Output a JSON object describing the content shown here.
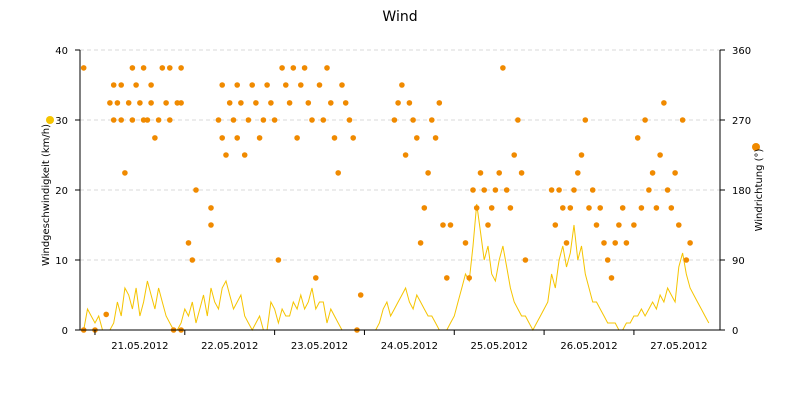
{
  "chart_data": {
    "type": "line",
    "title": "Wind",
    "x": {
      "tick_labels": [
        "21.05.2012",
        "22.05.2012",
        "23.05.2012",
        "24.05.2012",
        "25.05.2012",
        "26.05.2012",
        "27.05.2012"
      ],
      "range": [
        "20.05.2012 20:00",
        "27.05.2012 23:00"
      ]
    },
    "y_left": {
      "label": "Windgeschwindigkeit (km/h)",
      "range": [
        0,
        40
      ],
      "ticks": [
        0,
        10,
        20,
        30,
        40
      ]
    },
    "y_right": {
      "label": "Windrichtung (°)",
      "range": [
        0,
        360
      ],
      "ticks": [
        0,
        90,
        180,
        270,
        360
      ]
    },
    "grid": {
      "horizontal": "dashed"
    },
    "legend": {
      "speed_marker_color": "#F5C400",
      "direction_marker_color": "#F08A00"
    },
    "colors": {
      "speed": "#F5C400",
      "direction": "#F08A00"
    },
    "series": [
      {
        "name": "Windgeschwindigkeit (km/h)",
        "axis": "left",
        "kind": "line",
        "x_start": "20.05.2012 21:00",
        "step_hours": 1,
        "values": [
          0,
          3,
          2,
          1,
          2,
          0,
          0,
          0,
          1,
          4,
          2,
          6,
          5,
          3,
          6,
          2,
          4,
          7,
          5,
          3,
          6,
          4,
          2,
          1,
          0,
          0,
          1,
          3,
          2,
          4,
          1,
          3,
          5,
          2,
          6,
          4,
          3,
          6,
          7,
          5,
          3,
          4,
          5,
          2,
          1,
          0,
          1,
          2,
          0,
          0,
          4,
          3,
          1,
          3,
          2,
          2,
          4,
          3,
          5,
          3,
          4,
          6,
          3,
          4,
          4,
          1,
          3,
          2,
          1,
          0,
          0,
          0,
          0,
          0,
          0,
          0,
          0,
          0,
          0,
          1,
          3,
          4,
          2,
          3,
          4,
          5,
          6,
          4,
          3,
          5,
          4,
          3,
          2,
          2,
          1,
          0,
          0,
          0,
          1,
          2,
          4,
          6,
          8,
          7,
          12,
          18,
          14,
          10,
          12,
          8,
          7,
          10,
          12,
          9,
          6,
          4,
          3,
          2,
          2,
          1,
          0,
          1,
          2,
          3,
          4,
          8,
          6,
          10,
          12,
          9,
          11,
          15,
          10,
          12,
          8,
          6,
          4,
          4,
          3,
          2,
          1,
          1,
          1,
          0,
          0,
          1,
          1,
          2,
          2,
          3,
          2,
          3,
          4,
          3,
          5,
          4,
          6,
          5,
          4,
          9,
          11,
          8,
          6,
          5,
          4,
          3,
          2,
          1
        ]
      },
      {
        "name": "Windrichtung (°)",
        "axis": "right",
        "kind": "scatter",
        "points": [
          [
            "20.05.2012 21:00",
            337
          ],
          [
            "20.05.2012 21:00",
            0
          ],
          [
            "21.05.2012 00:00",
            0
          ],
          [
            "21.05.2012 03:00",
            20
          ],
          [
            "21.05.2012 04:00",
            292
          ],
          [
            "21.05.2012 05:00",
            315
          ],
          [
            "21.05.2012 05:00",
            270
          ],
          [
            "21.05.2012 06:00",
            292
          ],
          [
            "21.05.2012 07:00",
            315
          ],
          [
            "21.05.2012 07:00",
            270
          ],
          [
            "21.05.2012 08:00",
            202
          ],
          [
            "21.05.2012 09:00",
            292
          ],
          [
            "21.05.2012 10:00",
            337
          ],
          [
            "21.05.2012 10:00",
            270
          ],
          [
            "21.05.2012 11:00",
            315
          ],
          [
            "21.05.2012 12:00",
            292
          ],
          [
            "21.05.2012 13:00",
            337
          ],
          [
            "21.05.2012 13:00",
            270
          ],
          [
            "21.05.2012 14:00",
            270
          ],
          [
            "21.05.2012 15:00",
            315
          ],
          [
            "21.05.2012 15:00",
            292
          ],
          [
            "21.05.2012 16:00",
            247
          ],
          [
            "21.05.2012 17:00",
            270
          ],
          [
            "21.05.2012 18:00",
            337
          ],
          [
            "21.05.2012 19:00",
            292
          ],
          [
            "21.05.2012 20:00",
            337
          ],
          [
            "21.05.2012 20:00",
            270
          ],
          [
            "21.05.2012 21:00",
            0
          ],
          [
            "21.05.2012 22:00",
            292
          ],
          [
            "21.05.2012 23:00",
            337
          ],
          [
            "21.05.2012 23:00",
            292
          ],
          [
            "21.05.2012 23:00",
            0
          ],
          [
            "22.05.2012 01:00",
            112
          ],
          [
            "22.05.2012 02:00",
            90
          ],
          [
            "22.05.2012 03:00",
            180
          ],
          [
            "22.05.2012 07:00",
            157
          ],
          [
            "22.05.2012 07:00",
            135
          ],
          [
            "22.05.2012 09:00",
            270
          ],
          [
            "22.05.2012 10:00",
            315
          ],
          [
            "22.05.2012 10:00",
            247
          ],
          [
            "22.05.2012 11:00",
            225
          ],
          [
            "22.05.2012 12:00",
            292
          ],
          [
            "22.05.2012 13:00",
            270
          ],
          [
            "22.05.2012 14:00",
            315
          ],
          [
            "22.05.2012 14:00",
            247
          ],
          [
            "22.05.2012 15:00",
            292
          ],
          [
            "22.05.2012 16:00",
            225
          ],
          [
            "22.05.2012 17:00",
            270
          ],
          [
            "22.05.2012 18:00",
            315
          ],
          [
            "22.05.2012 19:00",
            292
          ],
          [
            "22.05.2012 20:00",
            247
          ],
          [
            "22.05.2012 21:00",
            270
          ],
          [
            "22.05.2012 22:00",
            315
          ],
          [
            "22.05.2012 23:00",
            292
          ],
          [
            "23.05.2012 00:00",
            270
          ],
          [
            "23.05.2012 01:00",
            90
          ],
          [
            "23.05.2012 02:00",
            337
          ],
          [
            "23.05.2012 03:00",
            315
          ],
          [
            "23.05.2012 04:00",
            292
          ],
          [
            "23.05.2012 05:00",
            337
          ],
          [
            "23.05.2012 06:00",
            247
          ],
          [
            "23.05.2012 07:00",
            315
          ],
          [
            "23.05.2012 08:00",
            337
          ],
          [
            "23.05.2012 09:00",
            292
          ],
          [
            "23.05.2012 10:00",
            270
          ],
          [
            "23.05.2012 11:00",
            67
          ],
          [
            "23.05.2012 12:00",
            315
          ],
          [
            "23.05.2012 13:00",
            270
          ],
          [
            "23.05.2012 14:00",
            337
          ],
          [
            "23.05.2012 15:00",
            292
          ],
          [
            "23.05.2012 16:00",
            247
          ],
          [
            "23.05.2012 17:00",
            202
          ],
          [
            "23.05.2012 18:00",
            315
          ],
          [
            "23.05.2012 19:00",
            292
          ],
          [
            "23.05.2012 20:00",
            270
          ],
          [
            "23.05.2012 21:00",
            247
          ],
          [
            "23.05.2012 22:00",
            0
          ],
          [
            "23.05.2012 23:00",
            45
          ],
          [
            "24.05.2012 08:00",
            270
          ],
          [
            "24.05.2012 09:00",
            292
          ],
          [
            "24.05.2012 10:00",
            315
          ],
          [
            "24.05.2012 11:00",
            225
          ],
          [
            "24.05.2012 12:00",
            292
          ],
          [
            "24.05.2012 13:00",
            270
          ],
          [
            "24.05.2012 14:00",
            247
          ],
          [
            "24.05.2012 15:00",
            112
          ],
          [
            "24.05.2012 16:00",
            157
          ],
          [
            "24.05.2012 17:00",
            202
          ],
          [
            "24.05.2012 18:00",
            270
          ],
          [
            "24.05.2012 19:00",
            247
          ],
          [
            "24.05.2012 20:00",
            292
          ],
          [
            "24.05.2012 21:00",
            135
          ],
          [
            "24.05.2012 22:00",
            67
          ],
          [
            "24.05.2012 23:00",
            135
          ],
          [
            "25.05.2012 03:00",
            112
          ],
          [
            "25.05.2012 04:00",
            67
          ],
          [
            "25.05.2012 05:00",
            180
          ],
          [
            "25.05.2012 06:00",
            157
          ],
          [
            "25.05.2012 07:00",
            202
          ],
          [
            "25.05.2012 08:00",
            180
          ],
          [
            "25.05.2012 09:00",
            135
          ],
          [
            "25.05.2012 10:00",
            157
          ],
          [
            "25.05.2012 11:00",
            180
          ],
          [
            "25.05.2012 12:00",
            202
          ],
          [
            "25.05.2012 13:00",
            337
          ],
          [
            "25.05.2012 14:00",
            180
          ],
          [
            "25.05.2012 15:00",
            157
          ],
          [
            "25.05.2012 16:00",
            225
          ],
          [
            "25.05.2012 17:00",
            270
          ],
          [
            "25.05.2012 18:00",
            202
          ],
          [
            "25.05.2012 19:00",
            90
          ],
          [
            "26.05.2012 02:00",
            180
          ],
          [
            "26.05.2012 03:00",
            135
          ],
          [
            "26.05.2012 04:00",
            180
          ],
          [
            "26.05.2012 05:00",
            157
          ],
          [
            "26.05.2012 06:00",
            112
          ],
          [
            "26.05.2012 07:00",
            157
          ],
          [
            "26.05.2012 08:00",
            180
          ],
          [
            "26.05.2012 09:00",
            202
          ],
          [
            "26.05.2012 10:00",
            225
          ],
          [
            "26.05.2012 11:00",
            270
          ],
          [
            "26.05.2012 12:00",
            157
          ],
          [
            "26.05.2012 13:00",
            180
          ],
          [
            "26.05.2012 14:00",
            135
          ],
          [
            "26.05.2012 15:00",
            157
          ],
          [
            "26.05.2012 16:00",
            112
          ],
          [
            "26.05.2012 17:00",
            90
          ],
          [
            "26.05.2012 18:00",
            67
          ],
          [
            "26.05.2012 19:00",
            112
          ],
          [
            "26.05.2012 20:00",
            135
          ],
          [
            "26.05.2012 21:00",
            157
          ],
          [
            "26.05.2012 22:00",
            112
          ],
          [
            "27.05.2012 00:00",
            135
          ],
          [
            "27.05.2012 01:00",
            247
          ],
          [
            "27.05.2012 02:00",
            157
          ],
          [
            "27.05.2012 03:00",
            270
          ],
          [
            "27.05.2012 04:00",
            180
          ],
          [
            "27.05.2012 05:00",
            202
          ],
          [
            "27.05.2012 06:00",
            157
          ],
          [
            "27.05.2012 07:00",
            225
          ],
          [
            "27.05.2012 08:00",
            292
          ],
          [
            "27.05.2012 09:00",
            180
          ],
          [
            "27.05.2012 10:00",
            157
          ],
          [
            "27.05.2012 11:00",
            202
          ],
          [
            "27.05.2012 12:00",
            135
          ],
          [
            "27.05.2012 13:00",
            270
          ],
          [
            "27.05.2012 14:00",
            90
          ],
          [
            "27.05.2012 15:00",
            112
          ]
        ]
      }
    ]
  }
}
